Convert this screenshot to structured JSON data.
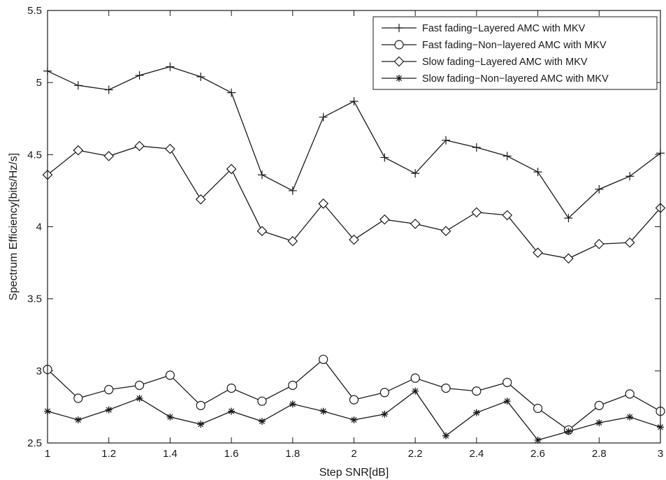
{
  "chart_data": {
    "type": "line",
    "title": "",
    "xlabel": "Step SNR[dB]",
    "ylabel": "Spectrum Efficiency[bits/Hz/s]",
    "xlim": [
      1,
      3
    ],
    "ylim": [
      2.5,
      5.5
    ],
    "x_ticks": [
      1,
      1.2,
      1.4,
      1.6,
      1.8,
      2,
      2.2,
      2.4,
      2.6,
      2.8,
      3
    ],
    "x_tick_labels": [
      "1",
      "1.2",
      "1.4",
      "1.6",
      "1.8",
      "2",
      "2.2",
      "2.4",
      "2.6",
      "2.8",
      "3"
    ],
    "y_ticks": [
      2.5,
      3,
      3.5,
      4,
      4.5,
      5,
      5.5
    ],
    "y_tick_labels": [
      "2.5",
      "3",
      "3.5",
      "4",
      "4.5",
      "5",
      "5.5"
    ],
    "grid": false,
    "legend_position": "top-right",
    "x": [
      1,
      1.1,
      1.2,
      1.3,
      1.4,
      1.5,
      1.6,
      1.7,
      1.8,
      1.9,
      2,
      2.1,
      2.2,
      2.3,
      2.4,
      2.5,
      2.6,
      2.7,
      2.8,
      2.9,
      3
    ],
    "series": [
      {
        "name": "Fast fading−Layered AMC with MKV",
        "marker": "plus",
        "color": "#1a1a1a",
        "values": [
          5.08,
          4.98,
          4.95,
          5.05,
          5.11,
          5.04,
          4.93,
          4.36,
          4.25,
          4.76,
          4.87,
          4.48,
          4.37,
          4.6,
          4.55,
          4.49,
          4.38,
          4.06,
          4.26,
          4.35,
          4.51
        ]
      },
      {
        "name": "Fast fading−Non−layered AMC with MKV",
        "marker": "circle",
        "color": "#1a1a1a",
        "values": [
          3.01,
          2.81,
          2.87,
          2.9,
          2.97,
          2.76,
          2.88,
          2.79,
          2.9,
          3.08,
          2.8,
          2.85,
          2.95,
          2.88,
          2.86,
          2.92,
          2.74,
          2.59,
          2.76,
          2.84,
          2.72
        ]
      },
      {
        "name": "Slow fading−Layered AMC with MKV",
        "marker": "diamond",
        "color": "#1a1a1a",
        "values": [
          4.36,
          4.53,
          4.49,
          4.56,
          4.54,
          4.19,
          4.4,
          3.97,
          3.9,
          4.16,
          3.91,
          4.05,
          4.02,
          3.97,
          4.1,
          4.08,
          3.82,
          3.78,
          3.88,
          3.89,
          4.13
        ]
      },
      {
        "name": "Slow fading−Non−layered AMC with MKV",
        "marker": "asterisk",
        "color": "#1a1a1a",
        "values": [
          2.72,
          2.66,
          2.73,
          2.81,
          2.68,
          2.63,
          2.72,
          2.65,
          2.77,
          2.72,
          2.66,
          2.7,
          2.86,
          2.55,
          2.71,
          2.79,
          2.52,
          2.58,
          2.64,
          2.68,
          2.61
        ]
      }
    ]
  }
}
